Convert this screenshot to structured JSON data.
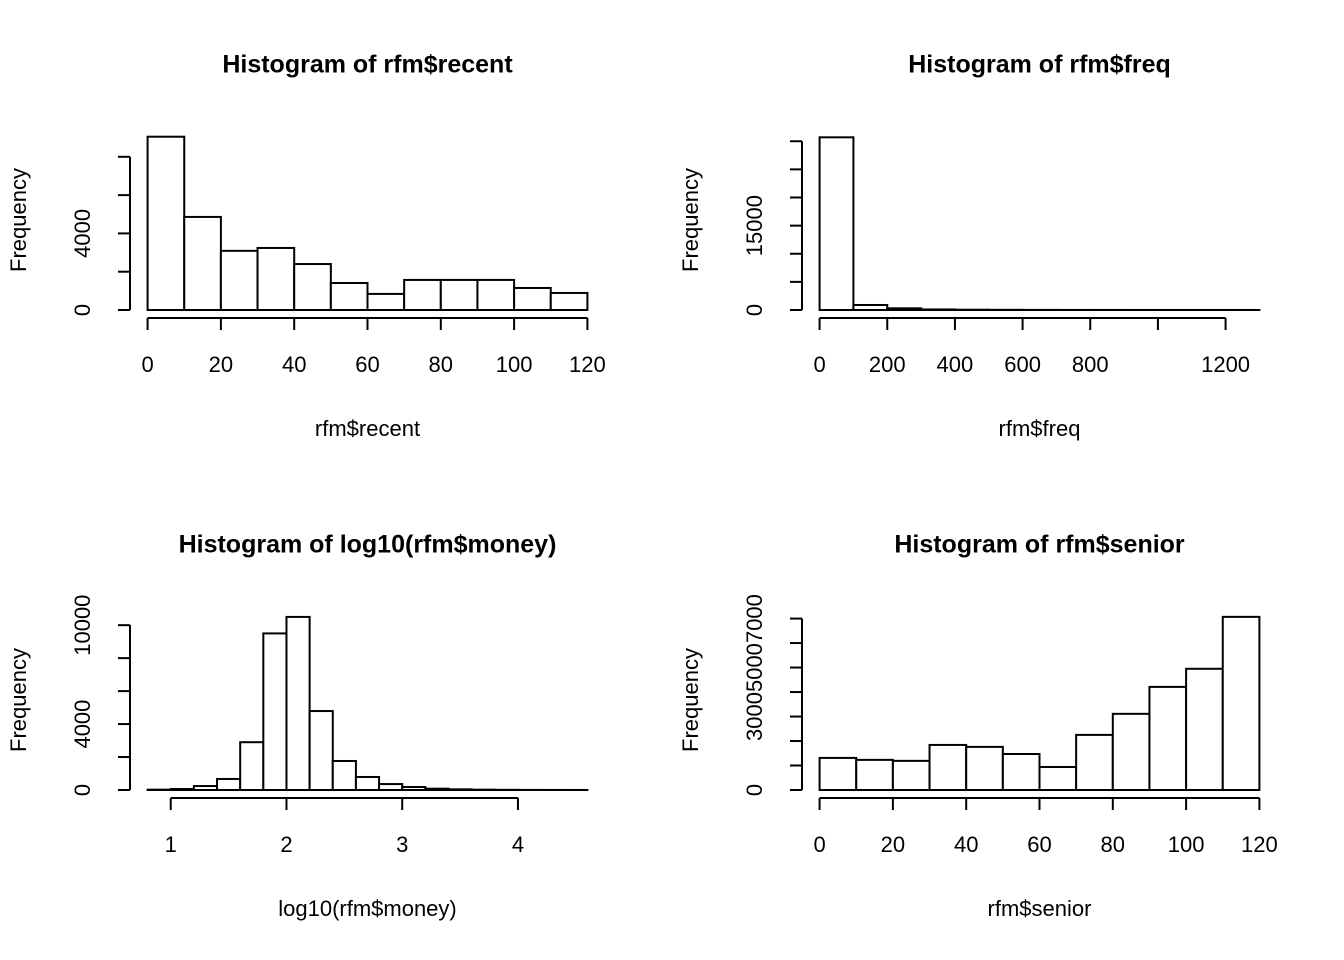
{
  "chart_data": [
    {
      "type": "histogram",
      "title": "Histogram of rfm$recent",
      "x_label": "rfm$recent",
      "y_label": "Frequency",
      "bins": [
        0,
        10,
        20,
        30,
        40,
        50,
        60,
        70,
        80,
        90,
        100,
        110,
        120
      ],
      "values": [
        9050,
        4860,
        3090,
        3240,
        2400,
        1410,
        840,
        1570,
        1570,
        1570,
        1150,
        890
      ],
      "xlim": [
        -4.8,
        124.8
      ],
      "ylim": [
        0,
        9400
      ],
      "xticks": [
        0,
        20,
        40,
        60,
        80,
        100,
        120
      ],
      "yticks": [
        0,
        {
          "value": 2000,
          "label": null
        },
        4000,
        {
          "value": 6000,
          "label": null
        },
        {
          "value": 8000,
          "label": null
        }
      ]
    },
    {
      "type": "histogram",
      "title": "Histogram of rfm$freq",
      "x_label": "rfm$freq",
      "y_label": "Frequency",
      "bins": [
        0,
        100,
        200,
        300,
        400,
        500,
        600,
        700,
        800,
        900,
        1000,
        1100,
        1200,
        1300
      ],
      "values": [
        30700,
        890,
        300,
        100,
        50,
        30,
        20,
        10,
        10,
        5,
        5,
        5,
        5
      ],
      "xlim": [
        -52,
        1352
      ],
      "ylim": [
        0,
        32000
      ],
      "xticks": [
        0,
        200,
        400,
        600,
        800,
        {
          "value": 1000,
          "label": null
        },
        1200
      ],
      "yticks": [
        0,
        {
          "value": 5000,
          "label": null
        },
        {
          "value": 10000,
          "label": null
        },
        15000,
        {
          "value": 20000,
          "label": null
        },
        {
          "value": 25000,
          "label": null
        },
        {
          "value": 30000,
          "label": null
        }
      ]
    },
    {
      "type": "histogram",
      "title": "Histogram of log10(rfm$money)",
      "x_label": "log10(rfm$money)",
      "y_label": "Frequency",
      "bins": [
        0.8,
        1.0,
        1.2,
        1.4,
        1.6,
        1.8,
        2.0,
        2.2,
        2.4,
        2.6,
        2.8,
        3.0,
        3.2,
        3.4,
        3.6,
        3.8,
        4.0,
        4.2,
        4.4,
        4.6
      ],
      "values": [
        20,
        60,
        240,
        670,
        2900,
        9500,
        10500,
        4790,
        1760,
        790,
        360,
        180,
        80,
        40,
        20,
        10,
        5,
        3,
        2
      ],
      "xlim": [
        0.648,
        4.752
      ],
      "ylim": [
        0,
        10920
      ],
      "xticks": [
        1,
        2,
        3,
        4
      ],
      "yticks": [
        0,
        {
          "value": 2000,
          "label": null
        },
        4000,
        {
          "value": 6000,
          "label": null
        },
        {
          "value": 8000,
          "label": null
        },
        10000
      ]
    },
    {
      "type": "histogram",
      "title": "Histogram of rfm$senior",
      "x_label": "rfm$senior",
      "y_label": "Frequency",
      "bins": [
        0,
        10,
        20,
        30,
        40,
        50,
        60,
        70,
        80,
        90,
        100,
        110,
        120
      ],
      "values": [
        1310,
        1230,
        1190,
        1840,
        1760,
        1470,
        940,
        2250,
        3110,
        4210,
        4950,
        7070
      ],
      "xlim": [
        -4.8,
        124.8
      ],
      "ylim": [
        0,
        7350
      ],
      "xticks": [
        0,
        20,
        40,
        60,
        80,
        100,
        120
      ],
      "yticks": [
        0,
        {
          "value": 1000,
          "label": null
        },
        {
          "value": 2000,
          "label": null
        },
        3000,
        {
          "value": 4000,
          "label": null
        },
        5000,
        {
          "value": 6000,
          "label": null
        },
        7000
      ]
    }
  ]
}
